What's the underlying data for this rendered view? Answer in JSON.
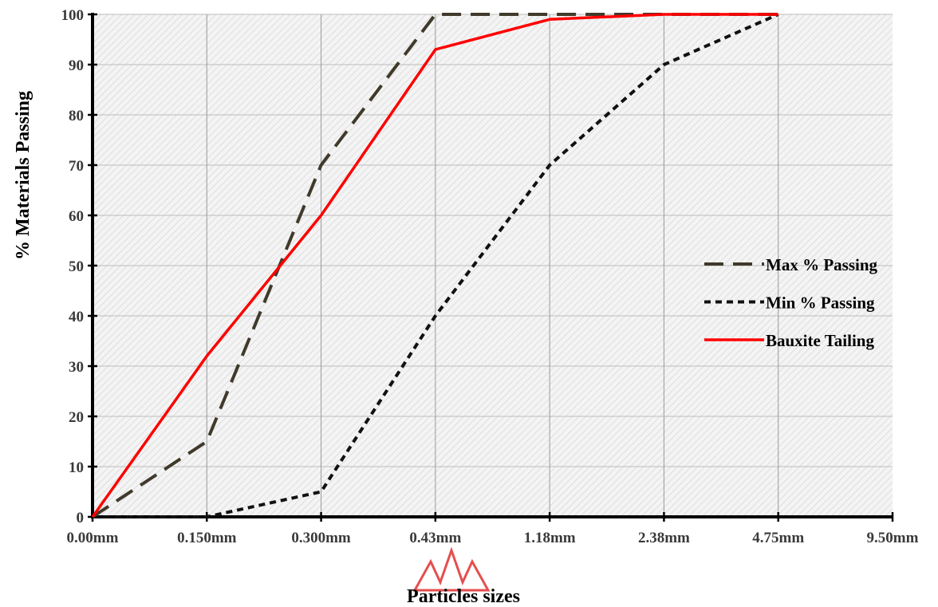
{
  "chart_data": {
    "type": "line",
    "categories": [
      "0.00mm",
      "0.150mm",
      "0.300mm",
      "0.43mm",
      "1.18mm",
      "2.38mm",
      "4.75mm",
      "9.50mm"
    ],
    "series": [
      {
        "name": "Max % Passing",
        "values": [
          0,
          15,
          70,
          100,
          100,
          100,
          100,
          null
        ],
        "color": "#403a2b",
        "dash": "long-dash"
      },
      {
        "name": "Min % Passing",
        "values": [
          0,
          0,
          5,
          40,
          70,
          90,
          100,
          null
        ],
        "color": "#111111",
        "dash": "short-dash"
      },
      {
        "name": "Bauxite Tailing",
        "values": [
          0,
          32,
          60,
          93,
          99,
          100,
          100,
          null
        ],
        "color": "#ff0000",
        "dash": "solid"
      }
    ],
    "yticks": [
      0,
      10,
      20,
      30,
      40,
      50,
      60,
      70,
      80,
      90,
      100
    ],
    "ylim": [
      0,
      100
    ],
    "xlabel": "Particles sizes",
    "ylabel": "% Materials Passing",
    "grid": true,
    "legend_position": "right"
  },
  "colors": {
    "watermark": "#e23b3b"
  }
}
